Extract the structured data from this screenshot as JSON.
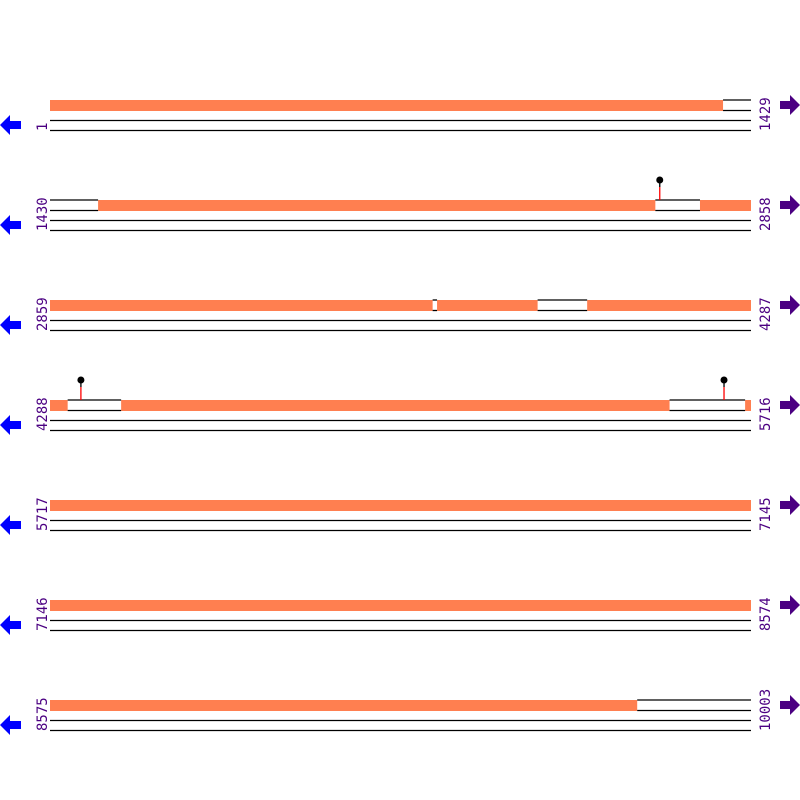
{
  "colors": {
    "feature": "#ff7f50",
    "line": "#000000",
    "marker_stem": "#ff0000",
    "label": "#4b0082",
    "reverse_arrow": "#0000ff",
    "forward_arrow": "#4b0082"
  },
  "icons": {
    "left": "arrow-left-icon",
    "right": "arrow-right-icon"
  },
  "rows": [
    {
      "start": 1,
      "end": 1429,
      "segments": [
        [
          1,
          1372
        ]
      ],
      "markers": []
    },
    {
      "start": 1430,
      "end": 2858,
      "segments": [
        [
          1528,
          2663
        ],
        [
          2755,
          2858
        ]
      ],
      "markers": [
        2673
      ]
    },
    {
      "start": 2859,
      "end": 4287,
      "segments": [
        [
          2859,
          3638
        ],
        [
          3648,
          3852
        ],
        [
          3954,
          4287
        ]
      ],
      "markers": []
    },
    {
      "start": 4288,
      "end": 5716,
      "segments": [
        [
          4288,
          4323
        ],
        [
          4433,
          5550
        ],
        [
          5705,
          5716
        ]
      ],
      "markers": [
        4351,
        5662
      ]
    },
    {
      "start": 5717,
      "end": 7145,
      "segments": [
        [
          5717,
          7145
        ]
      ],
      "markers": []
    },
    {
      "start": 7146,
      "end": 8574,
      "segments": [
        [
          7146,
          8574
        ]
      ],
      "markers": []
    },
    {
      "start": 8575,
      "end": 10003,
      "segments": [
        [
          8575,
          9771
        ]
      ],
      "markers": []
    }
  ]
}
